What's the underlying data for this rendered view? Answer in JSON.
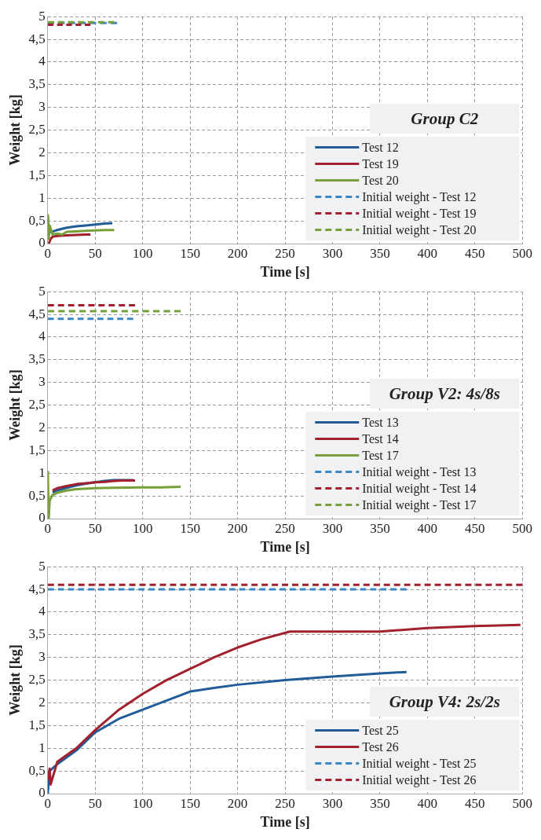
{
  "chart_data": [
    {
      "type": "line",
      "legend_title": "Group C2",
      "xlabel": "Time [s]",
      "ylabel": "Weight [kg]",
      "xlim": [
        0,
        500
      ],
      "xticks": [
        0,
        50,
        100,
        150,
        200,
        250,
        300,
        350,
        400,
        450,
        500
      ],
      "ylim": [
        0,
        5
      ],
      "yticks": [
        0,
        {
          "value": 0.5,
          "label": "0,5"
        },
        1,
        {
          "value": 1.5,
          "label": "1,5"
        },
        2,
        {
          "value": 2.5,
          "label": "2,5"
        },
        3,
        {
          "value": 3.5,
          "label": "3,5"
        },
        4,
        {
          "value": 4.5,
          "label": "4,5"
        },
        5
      ],
      "grid": true,
      "legend": "bottom right",
      "marker": "none",
      "series": [
        {
          "name": "Test 12",
          "color": "#1f5c99",
          "x": [
            0,
            1,
            3,
            6,
            10,
            20,
            30,
            40,
            50,
            60,
            68
          ],
          "values": [
            0.6,
            0.3,
            0.25,
            0.27,
            0.3,
            0.35,
            0.38,
            0.4,
            0.42,
            0.44,
            0.45
          ]
        },
        {
          "name": "Test 19",
          "color": "#a3202e",
          "x": [
            1,
            3,
            5,
            10,
            20,
            30,
            40,
            45
          ],
          "values": [
            0,
            0.1,
            0.15,
            0.17,
            0.18,
            0.19,
            0.2,
            0.2
          ]
        },
        {
          "name": "Test 20",
          "color": "#77a03a",
          "x": [
            0,
            1,
            2,
            5,
            10,
            15,
            20,
            30,
            40,
            50,
            60,
            70
          ],
          "values": [
            0.65,
            0.1,
            0.4,
            0.2,
            0.22,
            0.2,
            0.26,
            0.27,
            0.28,
            0.29,
            0.3,
            0.3
          ]
        },
        {
          "name": "Initial weight - Test 12",
          "color": "#3a87c8",
          "line_style": "dashed",
          "x": [
            0,
            73
          ],
          "values": [
            4.86,
            4.86
          ]
        },
        {
          "name": "Initial weight - Test 19",
          "color": "#a3202e",
          "line_style": "dashed",
          "x": [
            0,
            45
          ],
          "values": [
            4.82,
            4.82
          ]
        },
        {
          "name": "Initial weight - Test 20",
          "color": "#77a03a",
          "line_style": "dashed",
          "x": [
            0,
            70
          ],
          "values": [
            4.88,
            4.88
          ]
        }
      ]
    },
    {
      "type": "line",
      "legend_title": "Group V2: 4s/8s",
      "xlabel": "Time [s]",
      "ylabel": "Weight [kg]",
      "xlim": [
        0,
        500
      ],
      "xticks": [
        0,
        50,
        100,
        150,
        200,
        250,
        300,
        350,
        400,
        450,
        500
      ],
      "ylim": [
        0,
        5
      ],
      "yticks": [
        0,
        {
          "value": 0.5,
          "label": "0,5"
        },
        1,
        {
          "value": 1.5,
          "label": "1,5"
        },
        2,
        {
          "value": 2.5,
          "label": "2,5"
        },
        3,
        {
          "value": 3.5,
          "label": "3,5"
        },
        4,
        {
          "value": 4.5,
          "label": "4,5"
        },
        5
      ],
      "grid": true,
      "legend": "bottom right",
      "marker": "none",
      "series": [
        {
          "name": "Test 13",
          "color": "#1f5c99",
          "x": [
            5,
            10,
            20,
            30,
            40,
            50,
            60,
            70,
            80,
            90
          ],
          "values": [
            0.58,
            0.62,
            0.68,
            0.73,
            0.77,
            0.8,
            0.83,
            0.85,
            0.85,
            0.85
          ]
        },
        {
          "name": "Test 14",
          "color": "#a3202e",
          "x": [
            5,
            10,
            20,
            30,
            40,
            50,
            60,
            70,
            80,
            92
          ],
          "values": [
            0.62,
            0.67,
            0.72,
            0.76,
            0.78,
            0.8,
            0.81,
            0.83,
            0.84,
            0.84
          ]
        },
        {
          "name": "Test 17",
          "color": "#77a03a",
          "x": [
            0,
            1,
            2,
            5,
            10,
            20,
            30,
            50,
            70,
            100,
            120,
            140
          ],
          "values": [
            1.05,
            0,
            0.4,
            0.52,
            0.57,
            0.62,
            0.65,
            0.67,
            0.68,
            0.69,
            0.69,
            0.7
          ]
        },
        {
          "name": "Initial weight - Test 13",
          "color": "#3a87c8",
          "line_style": "dashed",
          "x": [
            0,
            90
          ],
          "values": [
            4.4,
            4.4
          ]
        },
        {
          "name": "Initial weight - Test 14",
          "color": "#a3202e",
          "line_style": "dashed",
          "x": [
            0,
            92
          ],
          "values": [
            4.7,
            4.7
          ]
        },
        {
          "name": "Initial weight - Test 17",
          "color": "#77a03a",
          "line_style": "dashed",
          "x": [
            0,
            140
          ],
          "values": [
            4.57,
            4.57
          ]
        }
      ]
    },
    {
      "type": "line",
      "legend_title": "Group V4: 2s/2s",
      "xlabel": "Time [s]",
      "ylabel": "Weight [kg]",
      "xlim": [
        0,
        500
      ],
      "xticks": [
        0,
        50,
        100,
        150,
        200,
        250,
        300,
        350,
        400,
        450,
        500
      ],
      "ylim": [
        0,
        5
      ],
      "yticks": [
        0,
        {
          "value": 0.5,
          "label": "0,5"
        },
        1,
        {
          "value": 1.5,
          "label": "1,5"
        },
        2,
        {
          "value": 2.5,
          "label": "2,5"
        },
        3,
        {
          "value": 3.5,
          "label": "3,5"
        },
        4,
        {
          "value": 4.5,
          "label": "4,5"
        },
        5
      ],
      "grid": true,
      "legend": "bottom right",
      "marker": "none",
      "series": [
        {
          "name": "Test 25",
          "color": "#1f5c99",
          "x": [
            0,
            2,
            10,
            30,
            50,
            75,
            100,
            125,
            150,
            175,
            200,
            250,
            300,
            350,
            378
          ],
          "values": [
            0,
            0.5,
            0.65,
            0.95,
            1.35,
            1.65,
            1.85,
            2.05,
            2.25,
            2.33,
            2.4,
            2.5,
            2.58,
            2.65,
            2.68
          ]
        },
        {
          "name": "Test 26",
          "color": "#a3202e",
          "x": [
            0,
            2,
            3,
            10,
            30,
            50,
            75,
            100,
            125,
            150,
            175,
            200,
            225,
            255,
            300,
            350,
            400,
            450,
            498
          ],
          "values": [
            0.3,
            0.55,
            0.2,
            0.7,
            1.0,
            1.4,
            1.85,
            2.2,
            2.5,
            2.75,
            3.0,
            3.22,
            3.4,
            3.57,
            3.57,
            3.57,
            3.65,
            3.69,
            3.72
          ]
        },
        {
          "name": "Initial weight - Test 25",
          "color": "#3a87c8",
          "line_style": "dashed",
          "x": [
            0,
            378
          ],
          "values": [
            4.5,
            4.5
          ]
        },
        {
          "name": "Initial weight - Test 26",
          "color": "#a3202e",
          "line_style": "dashed",
          "x": [
            0,
            500
          ],
          "values": [
            4.6,
            4.6
          ]
        }
      ]
    }
  ]
}
